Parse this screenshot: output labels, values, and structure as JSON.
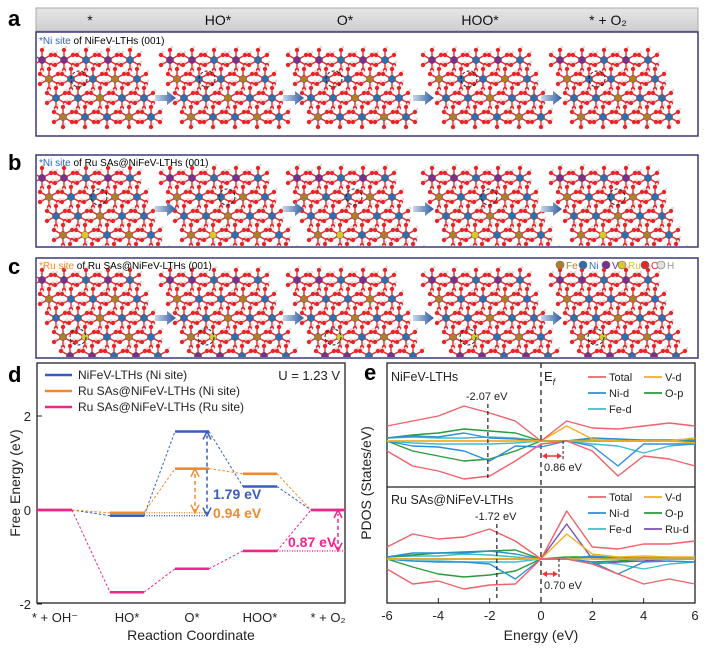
{
  "header": {
    "states": [
      "*",
      "HO*",
      "O*",
      "HOO*",
      "* + O₂"
    ]
  },
  "panels": {
    "a": {
      "letter": "a",
      "site": "*Ni site",
      "title": " of NiFeV-LTHs (001)",
      "site_color": "#2f63b5"
    },
    "b": {
      "letter": "b",
      "site": "*Ni site",
      "title": " of Ru SAs@NiFeV-LTHs (001)",
      "site_color": "#2f63b5"
    },
    "c": {
      "letter": "c",
      "site": "*Ru site",
      "title": " of Ru SAs@NiFeV-LTHs (001)",
      "site_color": "#f08a2a"
    },
    "d": {
      "letter": "d"
    },
    "e": {
      "letter": "e"
    }
  },
  "atom_legend": [
    {
      "label": "Fe",
      "color": "#b07d2a"
    },
    {
      "label": "Ni",
      "color": "#2f6fb0"
    },
    {
      "label": "V",
      "color": "#7b2f8e"
    },
    {
      "label": "Ru",
      "color": "#d8c82a"
    },
    {
      "label": "O",
      "color": "#e8262a"
    },
    {
      "label": "H",
      "color": "#e0e0e0"
    }
  ],
  "chart_data": [
    {
      "type": "line",
      "panel": "d",
      "xlabel": "Reaction Coordinate",
      "ylabel": "Free Energy (eV)",
      "categories": [
        "* + OH⁻",
        "HO*",
        "O*",
        "HOO*",
        "* + O₂"
      ],
      "ylim": [
        -2,
        2.9
      ],
      "yticks": [
        -2,
        0,
        2
      ],
      "annotation": "U = 1.23 V",
      "legend_position": "top-left",
      "series": [
        {
          "name": "NiFeV-LTHs (Ni site)",
          "color": "#3a5bbf",
          "values": [
            0,
            -0.12,
            1.67,
            0.5,
            0
          ]
        },
        {
          "name": "Ru SAs@NiFeV-LTHs (Ni site)",
          "color": "#f08a2a",
          "values": [
            0,
            -0.06,
            0.88,
            0.77,
            0
          ]
        },
        {
          "name": "Ru SAs@NiFeV-LTHs (Ru site)",
          "color": "#f0248a",
          "values": [
            0,
            -1.75,
            -1.25,
            -0.87,
            0
          ]
        }
      ],
      "barriers": [
        {
          "label": "1.79 eV",
          "color": "#3a5bbf"
        },
        {
          "label": "0.94 eV",
          "color": "#f08a2a"
        },
        {
          "label": "0.87 eV",
          "color": "#f0248a"
        }
      ]
    },
    {
      "type": "line",
      "panel": "e",
      "xlabel": "Energy (eV)",
      "ylabel": "PDOS (States/eV)",
      "xlim": [
        -6,
        6
      ],
      "xticks": [
        -6,
        -4,
        -2,
        0,
        2,
        4,
        6
      ],
      "x": [
        -6,
        -5,
        -4,
        -3,
        -2,
        -1,
        0,
        1,
        2,
        3,
        4,
        5,
        6
      ],
      "fermi_label": "E",
      "fermi_sub": "f",
      "subplots": [
        {
          "title": "NiFeV-LTHs",
          "d_band_center": "-2.07 eV",
          "d_band_center_value": -2.07,
          "gap": "0.86 eV",
          "gap_value": 0.86,
          "series": [
            {
              "name": "Total",
              "color": "#f0616a",
              "up": [
                1.5,
                2.0,
                2.5,
                3.5,
                2.8,
                2.0,
                0,
                2.0,
                1.3,
                1.2,
                1.5,
                1.8,
                1.5
              ],
              "down": [
                -1,
                -2.5,
                -3,
                -3.8,
                -3.5,
                -2,
                -0.3,
                0,
                -1,
                -3.5,
                -1.5,
                -1.8,
                -2.5
              ]
            },
            {
              "name": "V-d",
              "color": "#f0b020",
              "up": [
                0,
                0,
                0,
                0,
                0,
                0,
                0,
                1.5,
                0.2,
                0,
                0,
                0,
                0.3
              ],
              "down": [
                0,
                0,
                0,
                0,
                0,
                0,
                0,
                0,
                0,
                0,
                0,
                0,
                -0.2
              ]
            },
            {
              "name": "Ni-d",
              "color": "#2e8fd8",
              "up": [
                0.3,
                0.5,
                0.4,
                0.8,
                0.3,
                0.2,
                0,
                0,
                0.3,
                0.2,
                0.1,
                0.1,
                0.1
              ],
              "down": [
                0,
                -0.5,
                -0.6,
                -1,
                -2,
                -0.5,
                -0.6,
                0,
                -0.5,
                -2.5,
                -0.3,
                -0.3,
                -0.3
              ]
            },
            {
              "name": "O-p",
              "color": "#2a9a3a",
              "up": [
                0.3,
                0.6,
                0.8,
                1.2,
                1.0,
                0.8,
                0,
                0,
                0,
                0,
                0,
                0,
                0
              ],
              "down": [
                0,
                -1,
                -1.5,
                -2,
                -1.8,
                -1,
                0,
                0,
                0,
                0,
                0,
                0,
                0
              ]
            },
            {
              "name": "Fe-d",
              "color": "#3cc0c8",
              "up": [
                0.3,
                0.4,
                0.3,
                0.3,
                0.4,
                0.3,
                0,
                0,
                0.2,
                0.2,
                0,
                0,
                0
              ],
              "down": [
                0,
                -0.2,
                -0.3,
                -0.3,
                -0.3,
                -0.2,
                0,
                0,
                -0.3,
                -0.5,
                -1.2,
                -0.5,
                -0.3
              ]
            }
          ]
        },
        {
          "title": "Ru SAs@NiFeV-LTHs",
          "d_band_center": "-1.72 eV",
          "d_band_center_value": -1.72,
          "gap": "0.70 eV",
          "gap_value": 0.7,
          "series": [
            {
              "name": "Total",
              "color": "#f0616a",
              "up": [
                1.2,
                2.5,
                2.0,
                2.2,
                3.0,
                1.8,
                0,
                4.8,
                1.2,
                1.0,
                1.5,
                1.5,
                1.8
              ],
              "down": [
                -1,
                -2.5,
                -2.2,
                -3,
                -2.6,
                -2.5,
                0,
                0,
                -0.5,
                -1.5,
                -2.5,
                -2,
                -2.5
              ]
            },
            {
              "name": "V-d",
              "color": "#f0b020",
              "up": [
                0,
                0,
                0,
                0,
                0,
                0,
                0,
                2.5,
                0.5,
                0.2,
                0.3,
                0.2,
                0.2
              ],
              "down": [
                0,
                0,
                0,
                0,
                0,
                0,
                0,
                0,
                0,
                0,
                0,
                0,
                0
              ]
            },
            {
              "name": "Ni-d",
              "color": "#2e8fd8",
              "up": [
                0.2,
                0.6,
                0.6,
                0.6,
                0.8,
                0.5,
                0,
                0,
                0.3,
                0.1,
                0.1,
                0.1,
                0.1
              ],
              "down": [
                0,
                -0.2,
                -0.3,
                -0.3,
                -0.5,
                -2,
                0,
                0,
                -0.3,
                -1.5,
                -0.3,
                -0.2,
                -0.3
              ]
            },
            {
              "name": "O-p",
              "color": "#2a9a3a",
              "up": [
                0.2,
                0.4,
                0.6,
                0.7,
                0.8,
                0.9,
                0,
                0.2,
                0.2,
                0,
                0,
                0,
                0
              ],
              "down": [
                0,
                -0.8,
                -1.5,
                -1.8,
                -1.6,
                -1.2,
                0,
                0,
                -0.3,
                -0.2,
                0,
                0,
                0
              ]
            },
            {
              "name": "Fe-d",
              "color": "#3cc0c8",
              "up": [
                0.2,
                0.3,
                0.3,
                0.5,
                0.4,
                0.2,
                0,
                0,
                0.2,
                0.2,
                0,
                0,
                0
              ],
              "down": [
                0,
                -0.2,
                -0.2,
                -0.3,
                -0.3,
                -0.3,
                0,
                0,
                -0.3,
                -0.5,
                -1.0,
                -0.5,
                -0.3
              ]
            },
            {
              "name": "Ru-d",
              "color": "#7a4fb0",
              "up": [
                0,
                0,
                0,
                0,
                0,
                0,
                0,
                3.5,
                0,
                0,
                0.1,
                0,
                0
              ],
              "down": [
                0,
                0,
                0,
                0,
                0,
                0,
                0,
                0,
                -0.5,
                -0.3,
                -0.2,
                0,
                0
              ]
            }
          ]
        }
      ]
    }
  ]
}
